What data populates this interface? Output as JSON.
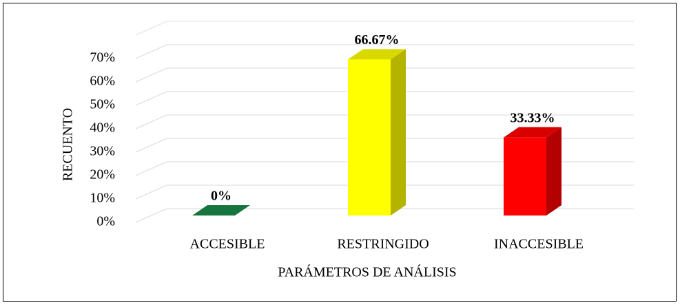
{
  "chart_data": {
    "type": "bar3d",
    "x_label": "PARÁMETROS DE ANÁLISIS",
    "y_label": "RECUENTO",
    "categories": [
      "ACCESIBLE",
      "RESTRINGIDO",
      "INACCESIBLE"
    ],
    "values": [
      0,
      66.67,
      33.33
    ],
    "value_labels": [
      "0%",
      "66.67%",
      "33.33%"
    ],
    "colors": [
      "#1a8a4a",
      "#ffff00",
      "#ff0000"
    ],
    "ylim": [
      0,
      80
    ],
    "yticks": [
      {
        "value": 0,
        "label": "0%"
      },
      {
        "value": 10,
        "label": "10%"
      },
      {
        "value": 20,
        "label": "20%"
      },
      {
        "value": 30,
        "label": "30%"
      },
      {
        "value": 40,
        "label": "40%"
      },
      {
        "value": 50,
        "label": "50%"
      },
      {
        "value": 60,
        "label": "60%"
      },
      {
        "value": 70,
        "label": "70%"
      }
    ],
    "grid": true
  }
}
